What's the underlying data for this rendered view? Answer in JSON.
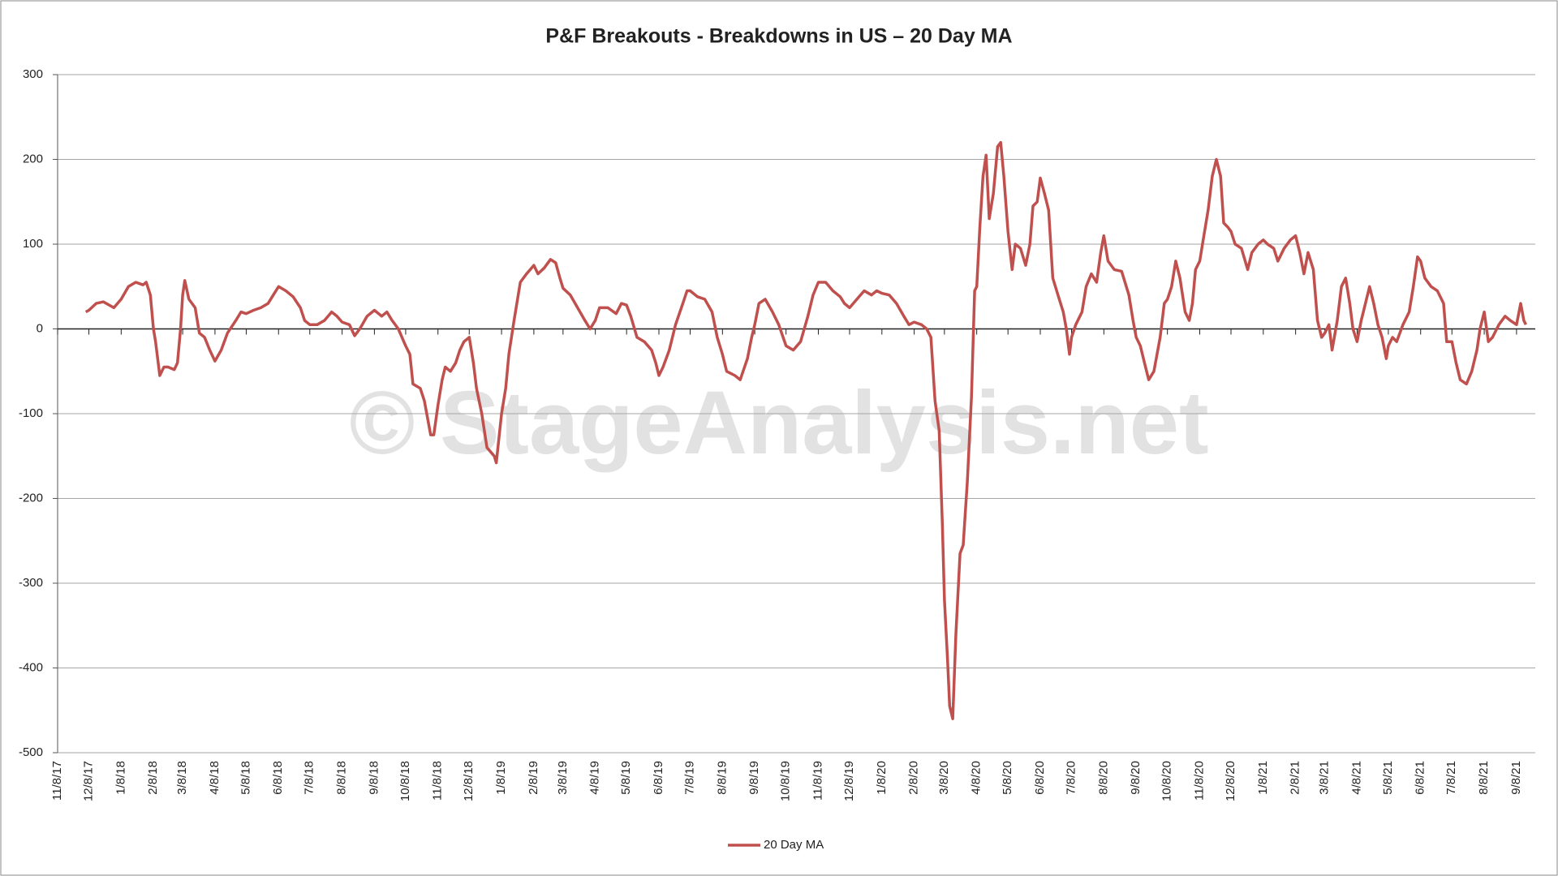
{
  "chart_data": {
    "type": "line",
    "title": "P&F Breakouts - Breakdowns in US – 20 Day MA",
    "watermark": "© StageAnalysis.net",
    "x": [
      "12/5/17",
      "12/8/17",
      "12/15/17",
      "12/22/17",
      "1/1/18",
      "1/8/18",
      "1/15/18",
      "1/22/18",
      "1/29/18",
      "2/1/18",
      "2/5/18",
      "2/8/18",
      "2/10/18",
      "2/14/18",
      "2/18/18",
      "2/22/18",
      "2/28/18",
      "3/3/18",
      "3/6/18",
      "3/8/18",
      "3/10/18",
      "3/14/18",
      "3/20/18",
      "3/24/18",
      "3/29/18",
      "4/3/18",
      "4/8/18",
      "4/14/18",
      "4/20/18",
      "4/28/18",
      "5/3/18",
      "5/8/18",
      "5/15/18",
      "5/22/18",
      "5/29/18",
      "6/3/18",
      "6/8/18",
      "6/15/18",
      "6/22/18",
      "6/29/18",
      "7/3/18",
      "7/8/18",
      "7/15/18",
      "7/22/18",
      "7/29/18",
      "8/3/18",
      "8/8/18",
      "8/15/18",
      "8/20/18",
      "8/25/18",
      "9/1/18",
      "9/8/18",
      "9/15/18",
      "9/20/18",
      "9/25/18",
      "10/1/18",
      "10/8/18",
      "10/12/18",
      "10/15/18",
      "10/22/18",
      "10/26/18",
      "11/1/18",
      "11/4/18",
      "11/8/18",
      "11/12/18",
      "11/15/18",
      "11/20/18",
      "11/25/18",
      "11/29/18",
      "12/3/18",
      "12/8/18",
      "12/12/18",
      "12/15/18",
      "12/20/18",
      "12/25/18",
      "1/1/19",
      "1/3/19",
      "1/8/19",
      "1/12/19",
      "1/15/19",
      "1/20/19",
      "1/26/19",
      "2/1/19",
      "2/8/19",
      "2/12/19",
      "2/18/19",
      "2/24/19",
      "3/1/19",
      "3/5/19",
      "3/8/19",
      "3/15/19",
      "3/22/19",
      "3/29/19",
      "4/3/19",
      "4/8/19",
      "4/12/19",
      "4/20/19",
      "4/28/19",
      "5/3/19",
      "5/8/19",
      "5/12/19",
      "5/18/19",
      "5/25/19",
      "6/1/19",
      "6/5/19",
      "6/8/19",
      "6/12/19",
      "6/18/19",
      "6/24/19",
      "7/1/19",
      "7/5/19",
      "7/8/19",
      "7/15/19",
      "7/22/19",
      "7/29/19",
      "8/3/19",
      "8/8/19",
      "8/12/19",
      "8/20/19",
      "8/25/19",
      "9/1/19",
      "9/5/19",
      "9/8/19",
      "9/12/19",
      "9/18/19",
      "9/25/19",
      "10/1/19",
      "10/8/19",
      "10/15/19",
      "10/22/19",
      "10/29/19",
      "11/3/19",
      "11/8/19",
      "11/15/19",
      "11/22/19",
      "11/29/19",
      "12/3/19",
      "12/8/19",
      "12/15/19",
      "12/22/19",
      "12/29/19",
      "1/3/20",
      "1/8/20",
      "1/15/20",
      "1/22/20",
      "1/29/20",
      "2/3/20",
      "2/8/20",
      "2/15/20",
      "2/20/20",
      "2/24/20",
      "2/28/20",
      "3/3/20",
      "3/6/20",
      "3/8/20",
      "3/11/20",
      "3/13/20",
      "3/16/20",
      "3/19/20",
      "3/23/20",
      "3/26/20",
      "3/30/20",
      "4/3/20",
      "4/6/20",
      "4/8/20",
      "4/11/20",
      "4/14/20",
      "4/17/20",
      "4/20/20",
      "4/24/20",
      "4/28/20",
      "5/1/20",
      "5/4/20",
      "5/8/20",
      "5/12/20",
      "5/15/20",
      "5/20/20",
      "5/25/20",
      "5/29/20",
      "6/1/20",
      "6/5/20",
      "6/8/20",
      "6/12/20",
      "6/16/20",
      "6/20/20",
      "6/25/20",
      "6/30/20",
      "7/3/20",
      "7/6/20",
      "7/8/20",
      "7/12/20",
      "7/18/20",
      "7/22/20",
      "7/27/20",
      "8/1/20",
      "8/5/20",
      "8/8/20",
      "8/12/20",
      "8/18/20",
      "8/25/20",
      "9/1/20",
      "9/5/20",
      "9/8/20",
      "9/12/20",
      "9/16/20",
      "9/20/20",
      "9/25/20",
      "10/1/20",
      "10/5/20",
      "10/8/20",
      "10/12/20",
      "10/16/20",
      "10/20/20",
      "10/25/20",
      "10/29/20",
      "11/1/20",
      "11/4/20",
      "11/8/20",
      "11/12/20",
      "11/16/20",
      "11/20/20",
      "11/24/20",
      "11/28/20",
      "12/1/20",
      "12/5/20",
      "12/8/20",
      "12/12/20",
      "12/18/20",
      "12/24/20",
      "12/28/20",
      "1/3/21",
      "1/8/21",
      "1/12/21",
      "1/18/21",
      "1/22/21",
      "1/28/21",
      "2/3/21",
      "2/8/21",
      "2/12/21",
      "2/16/21",
      "2/20/21",
      "2/25/21",
      "3/1/21",
      "3/5/21",
      "3/8/21",
      "3/12/21",
      "3/15/21",
      "3/20/21",
      "3/24/21",
      "3/28/21",
      "4/1/21",
      "4/4/21",
      "4/8/21",
      "4/12/21",
      "4/16/21",
      "4/20/21",
      "4/24/21",
      "4/28/21",
      "5/2/21",
      "5/6/21",
      "5/8/21",
      "5/12/21",
      "5/16/21",
      "5/22/21",
      "5/28/21",
      "6/1/21",
      "6/5/21",
      "6/8/21",
      "6/12/21",
      "6/18/21",
      "6/24/21",
      "6/30/21",
      "7/3/21",
      "7/8/21",
      "7/12/21",
      "7/16/21",
      "7/22/21",
      "7/27/21",
      "8/1/21",
      "8/4/21",
      "8/8/21",
      "8/12/21",
      "8/16/21",
      "8/22/21",
      "8/28/21",
      "9/2/21",
      "9/8/21",
      "9/12/21",
      "9/15/21",
      "9/17/21"
    ],
    "series": [
      {
        "name": "20 Day MA",
        "color": "#c0504d",
        "values": [
          20,
          22,
          30,
          32,
          25,
          35,
          50,
          55,
          52,
          55,
          40,
          0,
          -15,
          -55,
          -45,
          -45,
          -48,
          -40,
          0,
          40,
          57,
          35,
          25,
          -5,
          -10,
          -25,
          -38,
          -25,
          -5,
          10,
          20,
          18,
          22,
          25,
          30,
          40,
          50,
          45,
          38,
          25,
          10,
          5,
          5,
          10,
          20,
          15,
          8,
          5,
          -8,
          0,
          15,
          22,
          15,
          20,
          10,
          0,
          -20,
          -30,
          -65,
          -70,
          -85,
          -125,
          -125,
          -90,
          -60,
          -45,
          -50,
          -40,
          -25,
          -15,
          -10,
          -40,
          -70,
          -100,
          -140,
          -150,
          -158,
          -100,
          -70,
          -30,
          10,
          55,
          65,
          75,
          65,
          72,
          82,
          78,
          60,
          48,
          40,
          25,
          10,
          0,
          10,
          25,
          25,
          18,
          30,
          28,
          15,
          -10,
          -15,
          -25,
          -40,
          -55,
          -45,
          -25,
          5,
          30,
          45,
          45,
          38,
          35,
          20,
          -10,
          -30,
          -50,
          -55,
          -60,
          -35,
          -10,
          5,
          30,
          35,
          20,
          5,
          -20,
          -25,
          -15,
          15,
          40,
          55,
          55,
          45,
          38,
          30,
          25,
          35,
          45,
          40,
          45,
          42,
          40,
          30,
          15,
          5,
          8,
          5,
          0,
          -10,
          -85,
          -120,
          -230,
          -320,
          -390,
          -445,
          -460,
          -360,
          -265,
          -255,
          -180,
          -80,
          45,
          50,
          120,
          180,
          205,
          130,
          160,
          215,
          220,
          180,
          115,
          70,
          100,
          95,
          75,
          100,
          145,
          150,
          178,
          160,
          140,
          60,
          40,
          20,
          0,
          -30,
          -10,
          5,
          20,
          50,
          65,
          55,
          90,
          110,
          80,
          70,
          68,
          40,
          10,
          -10,
          -20,
          -40,
          -60,
          -50,
          -10,
          30,
          35,
          50,
          80,
          60,
          20,
          10,
          30,
          70,
          80,
          110,
          140,
          180,
          200,
          180,
          125,
          120,
          115,
          100,
          95,
          70,
          90,
          100,
          105,
          100,
          95,
          80,
          95,
          105,
          110,
          90,
          65,
          90,
          70,
          10,
          -10,
          -5,
          5,
          -25,
          10,
          50,
          60,
          30,
          0,
          -15,
          10,
          30,
          50,
          30,
          5,
          -10,
          -35,
          -20,
          -10,
          -15,
          5,
          20,
          50,
          85,
          80,
          60,
          50,
          45,
          30,
          -15,
          -15,
          -40,
          -60,
          -65,
          -50,
          -25,
          0,
          20,
          -15,
          -10,
          5,
          15,
          10,
          5,
          30,
          10,
          5
        ]
      }
    ],
    "xlim": [
      "11/8/17",
      "9/26/21"
    ],
    "xticks": [
      "11/8/17",
      "12/8/17",
      "1/8/18",
      "2/8/18",
      "3/8/18",
      "4/8/18",
      "5/8/18",
      "6/8/18",
      "7/8/18",
      "8/8/18",
      "9/8/18",
      "10/8/18",
      "11/8/18",
      "12/8/18",
      "1/8/19",
      "2/8/19",
      "3/8/19",
      "4/8/19",
      "5/8/19",
      "6/8/19",
      "7/8/19",
      "8/8/19",
      "9/8/19",
      "10/8/19",
      "11/8/19",
      "12/8/19",
      "1/8/20",
      "2/8/20",
      "3/8/20",
      "4/8/20",
      "5/8/20",
      "6/8/20",
      "7/8/20",
      "8/8/20",
      "9/8/20",
      "10/8/20",
      "11/8/20",
      "12/8/20",
      "1/8/21",
      "2/8/21",
      "3/8/21",
      "4/8/21",
      "5/8/21",
      "6/8/21",
      "7/8/21",
      "8/8/21",
      "9/8/21"
    ],
    "ylim": [
      -500,
      300
    ],
    "yticks": [
      -500,
      -400,
      -300,
      -200,
      -100,
      0,
      100,
      200,
      300
    ],
    "grid": true,
    "legend": "bottom"
  }
}
